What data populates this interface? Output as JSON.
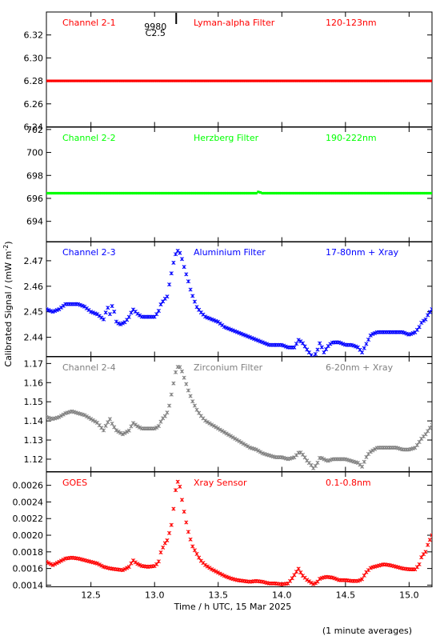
{
  "figure": {
    "xlabel": "Time / h UTC, 15 Mar 2025",
    "ylabel": "Calibrated Signal / (mW m",
    "ylabel_sup": "-2",
    "ylabel_close": ")",
    "footer": "(1 minute averages)",
    "marker": {
      "x": 13.17,
      "label_number": "9980",
      "label_class": "C2.5"
    }
  },
  "chart_data": [
    {
      "type": "scatter",
      "name": "Channel 2-1",
      "filter": "Lyman-alpha Filter",
      "band": "120-123nm",
      "color": "#ff0000",
      "xlim": [
        12.15,
        15.18
      ],
      "ylim": [
        6.24,
        6.34
      ],
      "yticks": [
        6.24,
        6.26,
        6.28,
        6.3,
        6.32
      ],
      "points": [
        [
          12.15,
          6.28
        ],
        [
          15.18,
          6.28
        ]
      ]
    },
    {
      "type": "scatter",
      "name": "Channel 2-2",
      "filter": "Herzberg Filter",
      "band": "190-222nm",
      "color": "#00ff00",
      "xlim": [
        12.15,
        15.18
      ],
      "ylim": [
        692.2,
        702.2
      ],
      "yticks": [
        694,
        696,
        698,
        700,
        702
      ],
      "points": [
        [
          12.15,
          696.45
        ],
        [
          13.8,
          696.45
        ],
        [
          13.82,
          696.6
        ],
        [
          13.84,
          696.45
        ],
        [
          15.18,
          696.45
        ]
      ]
    },
    {
      "type": "scatter",
      "name": "Channel 2-3",
      "filter": "Aluminium Filter",
      "band": "17-80nm + Xray",
      "color": "#0000ff",
      "xlim": [
        12.15,
        15.18
      ],
      "ylim": [
        2.4325,
        2.4775
      ],
      "yticks": [
        2.44,
        2.45,
        2.46,
        2.47
      ],
      "points": [
        [
          12.15,
          2.451
        ],
        [
          12.2,
          2.45
        ],
        [
          12.25,
          2.451
        ],
        [
          12.3,
          2.453
        ],
        [
          12.35,
          2.453
        ],
        [
          12.4,
          2.453
        ],
        [
          12.45,
          2.452
        ],
        [
          12.5,
          2.45
        ],
        [
          12.55,
          2.449
        ],
        [
          12.6,
          2.447
        ],
        [
          12.63,
          2.452
        ],
        [
          12.65,
          2.449
        ],
        [
          12.67,
          2.453
        ],
        [
          12.7,
          2.446
        ],
        [
          12.73,
          2.445
        ],
        [
          12.77,
          2.446
        ],
        [
          12.8,
          2.448
        ],
        [
          12.83,
          2.451
        ],
        [
          12.87,
          2.449
        ],
        [
          12.9,
          2.448
        ],
        [
          12.95,
          2.448
        ],
        [
          13.0,
          2.448
        ],
        [
          13.03,
          2.45
        ],
        [
          13.05,
          2.453
        ],
        [
          13.08,
          2.455
        ],
        [
          13.1,
          2.456
        ],
        [
          13.12,
          2.462
        ],
        [
          13.14,
          2.467
        ],
        [
          13.16,
          2.472
        ],
        [
          13.18,
          2.474
        ],
        [
          13.2,
          2.473
        ],
        [
          13.22,
          2.47
        ],
        [
          13.24,
          2.466
        ],
        [
          13.26,
          2.463
        ],
        [
          13.28,
          2.459
        ],
        [
          13.3,
          2.456
        ],
        [
          13.33,
          2.452
        ],
        [
          13.36,
          2.45
        ],
        [
          13.4,
          2.448
        ],
        [
          13.45,
          2.447
        ],
        [
          13.5,
          2.446
        ],
        [
          13.55,
          2.444
        ],
        [
          13.6,
          2.443
        ],
        [
          13.65,
          2.442
        ],
        [
          13.7,
          2.441
        ],
        [
          13.75,
          2.44
        ],
        [
          13.8,
          2.439
        ],
        [
          13.85,
          2.438
        ],
        [
          13.9,
          2.437
        ],
        [
          13.95,
          2.437
        ],
        [
          14.0,
          2.437
        ],
        [
          14.05,
          2.436
        ],
        [
          14.1,
          2.436
        ],
        [
          14.13,
          2.439
        ],
        [
          14.16,
          2.438
        ],
        [
          14.2,
          2.435
        ],
        [
          14.23,
          2.433
        ],
        [
          14.25,
          2.432
        ],
        [
          14.28,
          2.435
        ],
        [
          14.3,
          2.438
        ],
        [
          14.33,
          2.434
        ],
        [
          14.37,
          2.437
        ],
        [
          14.4,
          2.438
        ],
        [
          14.45,
          2.438
        ],
        [
          14.5,
          2.437
        ],
        [
          14.55,
          2.437
        ],
        [
          14.6,
          2.436
        ],
        [
          14.63,
          2.434
        ],
        [
          14.67,
          2.438
        ],
        [
          14.7,
          2.441
        ],
        [
          14.75,
          2.442
        ],
        [
          14.8,
          2.442
        ],
        [
          14.85,
          2.442
        ],
        [
          14.9,
          2.442
        ],
        [
          14.95,
          2.442
        ],
        [
          15.0,
          2.441
        ],
        [
          15.05,
          2.442
        ],
        [
          15.08,
          2.444
        ],
        [
          15.1,
          2.446
        ],
        [
          15.13,
          2.447
        ],
        [
          15.15,
          2.449
        ],
        [
          15.18,
          2.451
        ]
      ]
    },
    {
      "type": "scatter",
      "name": "Channel 2-4",
      "filter": "Zirconium Filter",
      "band": "6-20nm + Xray",
      "color": "#808080",
      "xlim": [
        12.15,
        15.18
      ],
      "ylim": [
        1.1135,
        1.1735
      ],
      "yticks": [
        1.12,
        1.13,
        1.14,
        1.15,
        1.16,
        1.17
      ],
      "points": [
        [
          12.15,
          1.142
        ],
        [
          12.2,
          1.141
        ],
        [
          12.25,
          1.142
        ],
        [
          12.3,
          1.144
        ],
        [
          12.35,
          1.145
        ],
        [
          12.4,
          1.144
        ],
        [
          12.45,
          1.143
        ],
        [
          12.5,
          1.141
        ],
        [
          12.55,
          1.139
        ],
        [
          12.6,
          1.135
        ],
        [
          12.62,
          1.138
        ],
        [
          12.65,
          1.141
        ],
        [
          12.67,
          1.138
        ],
        [
          12.7,
          1.135
        ],
        [
          12.75,
          1.133
        ],
        [
          12.8,
          1.135
        ],
        [
          12.83,
          1.139
        ],
        [
          12.87,
          1.137
        ],
        [
          12.9,
          1.136
        ],
        [
          12.95,
          1.136
        ],
        [
          13.0,
          1.136
        ],
        [
          13.03,
          1.137
        ],
        [
          13.06,
          1.141
        ],
        [
          13.09,
          1.143
        ],
        [
          13.11,
          1.146
        ],
        [
          13.13,
          1.153
        ],
        [
          13.15,
          1.16
        ],
        [
          13.17,
          1.167
        ],
        [
          13.19,
          1.169
        ],
        [
          13.21,
          1.167
        ],
        [
          13.23,
          1.163
        ],
        [
          13.25,
          1.159
        ],
        [
          13.27,
          1.155
        ],
        [
          13.3,
          1.15
        ],
        [
          13.33,
          1.146
        ],
        [
          13.36,
          1.143
        ],
        [
          13.4,
          1.14
        ],
        [
          13.45,
          1.138
        ],
        [
          13.5,
          1.136
        ],
        [
          13.55,
          1.134
        ],
        [
          13.6,
          1.132
        ],
        [
          13.65,
          1.13
        ],
        [
          13.7,
          1.128
        ],
        [
          13.75,
          1.126
        ],
        [
          13.8,
          1.125
        ],
        [
          13.85,
          1.123
        ],
        [
          13.9,
          1.122
        ],
        [
          13.95,
          1.121
        ],
        [
          14.0,
          1.121
        ],
        [
          14.05,
          1.12
        ],
        [
          14.1,
          1.121
        ],
        [
          14.14,
          1.124
        ],
        [
          14.17,
          1.122
        ],
        [
          14.2,
          1.119
        ],
        [
          14.23,
          1.117
        ],
        [
          14.25,
          1.115
        ],
        [
          14.28,
          1.118
        ],
        [
          14.3,
          1.121
        ],
        [
          14.33,
          1.12
        ],
        [
          14.36,
          1.119
        ],
        [
          14.4,
          1.12
        ],
        [
          14.45,
          1.12
        ],
        [
          14.5,
          1.12
        ],
        [
          14.55,
          1.119
        ],
        [
          14.6,
          1.118
        ],
        [
          14.63,
          1.116
        ],
        [
          14.67,
          1.122
        ],
        [
          14.7,
          1.124
        ],
        [
          14.75,
          1.126
        ],
        [
          14.8,
          1.126
        ],
        [
          14.85,
          1.126
        ],
        [
          14.9,
          1.126
        ],
        [
          14.95,
          1.125
        ],
        [
          15.0,
          1.125
        ],
        [
          15.05,
          1.126
        ],
        [
          15.08,
          1.129
        ],
        [
          15.1,
          1.131
        ],
        [
          15.13,
          1.133
        ],
        [
          15.15,
          1.135
        ],
        [
          15.18,
          1.138
        ]
      ]
    },
    {
      "type": "scatter",
      "name": "GOES",
      "filter": "Xray Sensor",
      "band": "0.1-0.8nm",
      "color": "#ff0000",
      "xlim": [
        12.15,
        15.18
      ],
      "ylim": [
        0.00138,
        0.00276
      ],
      "yticks": [
        0.0014,
        0.0016,
        0.0018,
        0.002,
        0.0022,
        0.0024,
        0.0026
      ],
      "ytick_labels": [
        "0.0014",
        "0.0016",
        "0.0018",
        "0.0020",
        "0.0022",
        "0.0024",
        "0.0026"
      ],
      "points": [
        [
          12.15,
          0.00168
        ],
        [
          12.2,
          0.00164
        ],
        [
          12.25,
          0.00168
        ],
        [
          12.3,
          0.00172
        ],
        [
          12.35,
          0.00173
        ],
        [
          12.4,
          0.00172
        ],
        [
          12.45,
          0.0017
        ],
        [
          12.5,
          0.00168
        ],
        [
          12.55,
          0.00166
        ],
        [
          12.6,
          0.00162
        ],
        [
          12.65,
          0.0016
        ],
        [
          12.7,
          0.00159
        ],
        [
          12.75,
          0.00158
        ],
        [
          12.8,
          0.00162
        ],
        [
          12.83,
          0.0017
        ],
        [
          12.86,
          0.00166
        ],
        [
          12.9,
          0.00163
        ],
        [
          12.95,
          0.00162
        ],
        [
          13.0,
          0.00163
        ],
        [
          13.03,
          0.00167
        ],
        [
          13.05,
          0.0018
        ],
        [
          13.08,
          0.0019
        ],
        [
          13.1,
          0.00194
        ],
        [
          13.12,
          0.00205
        ],
        [
          13.14,
          0.00217
        ],
        [
          13.16,
          0.0025
        ],
        [
          13.18,
          0.00265
        ],
        [
          13.2,
          0.00258
        ],
        [
          13.22,
          0.00238
        ],
        [
          13.24,
          0.00222
        ],
        [
          13.26,
          0.00207
        ],
        [
          13.28,
          0.00196
        ],
        [
          13.3,
          0.00186
        ],
        [
          13.33,
          0.00178
        ],
        [
          13.36,
          0.0017
        ],
        [
          13.4,
          0.00164
        ],
        [
          13.45,
          0.00159
        ],
        [
          13.5,
          0.00155
        ],
        [
          13.55,
          0.00151
        ],
        [
          13.6,
          0.00148
        ],
        [
          13.65,
          0.00146
        ],
        [
          13.7,
          0.00145
        ],
        [
          13.75,
          0.00144
        ],
        [
          13.8,
          0.00145
        ],
        [
          13.85,
          0.00144
        ],
        [
          13.9,
          0.00142
        ],
        [
          13.95,
          0.00142
        ],
        [
          14.0,
          0.00141
        ],
        [
          14.05,
          0.00142
        ],
        [
          14.08,
          0.00148
        ],
        [
          14.11,
          0.00155
        ],
        [
          14.13,
          0.0016
        ],
        [
          14.16,
          0.00152
        ],
        [
          14.2,
          0.00146
        ],
        [
          14.23,
          0.00143
        ],
        [
          14.25,
          0.00141
        ],
        [
          14.28,
          0.00144
        ],
        [
          14.3,
          0.00148
        ],
        [
          14.35,
          0.0015
        ],
        [
          14.4,
          0.00149
        ],
        [
          14.45,
          0.00146
        ],
        [
          14.5,
          0.00146
        ],
        [
          14.55,
          0.00145
        ],
        [
          14.6,
          0.00145
        ],
        [
          14.63,
          0.00147
        ],
        [
          14.66,
          0.00155
        ],
        [
          14.7,
          0.00161
        ],
        [
          14.75,
          0.00163
        ],
        [
          14.8,
          0.00165
        ],
        [
          14.85,
          0.00164
        ],
        [
          14.9,
          0.00162
        ],
        [
          14.95,
          0.0016
        ],
        [
          15.0,
          0.00159
        ],
        [
          15.05,
          0.00159
        ],
        [
          15.08,
          0.00165
        ],
        [
          15.1,
          0.00175
        ],
        [
          15.13,
          0.0018
        ],
        [
          15.15,
          0.0019
        ],
        [
          15.18,
          0.002
        ]
      ]
    }
  ],
  "x_axis": {
    "ticks": [
      12.5,
      13.0,
      13.5,
      14.0,
      14.5,
      15.0
    ],
    "tick_labels": [
      "12.5",
      "13.0",
      "13.5",
      "14.0",
      "14.5",
      "15.0"
    ]
  }
}
